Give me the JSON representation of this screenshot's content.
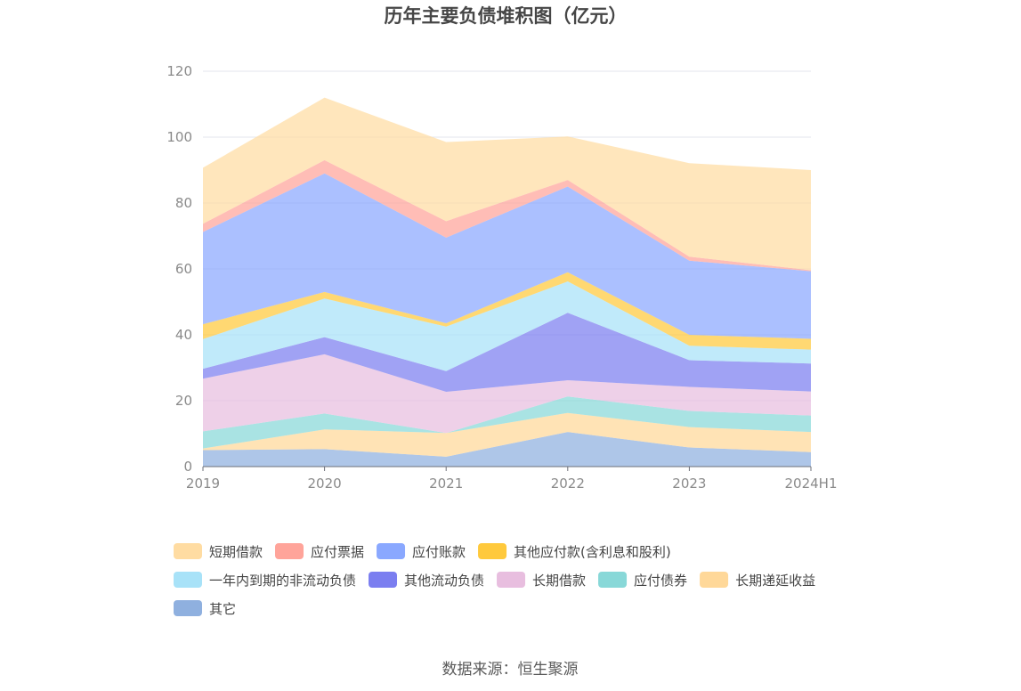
{
  "chart_data": {
    "type": "area",
    "stacked": true,
    "title": "历年主要负债堆积图（亿元）",
    "xlabel": "",
    "ylabel": "",
    "x": [
      "2019",
      "2020",
      "2021",
      "2022",
      "2023",
      "2024H1"
    ],
    "ylim": [
      0,
      120
    ],
    "yticks": [
      0,
      20,
      40,
      60,
      80,
      100,
      120
    ],
    "grid": true,
    "legend_position": "bottom",
    "series": [
      {
        "name": "其它",
        "color": "#8fb0df",
        "values": [
          5.0,
          5.3,
          3.0,
          10.5,
          5.8,
          4.4
        ]
      },
      {
        "name": "长期递延收益",
        "color": "#ffd899",
        "values": [
          0.5,
          6.0,
          7.2,
          5.8,
          6.2,
          6.1
        ]
      },
      {
        "name": "应付债券",
        "color": "#88d8d8",
        "values": [
          5.2,
          4.8,
          0.0,
          5.0,
          4.9,
          5.0
        ]
      },
      {
        "name": "长期借款",
        "color": "#e8bedf",
        "values": [
          16.0,
          18.0,
          12.5,
          4.9,
          7.3,
          7.3
        ]
      },
      {
        "name": "其他流动负债",
        "color": "#7b7ef0",
        "values": [
          3.0,
          5.2,
          6.3,
          20.5,
          8.1,
          8.5
        ]
      },
      {
        "name": "一年内到期的非流动负债",
        "color": "#a8e2f8",
        "values": [
          9.0,
          11.7,
          13.5,
          9.5,
          4.4,
          4.2
        ]
      },
      {
        "name": "其他应付款(含利息和股利)",
        "color": "#ffc93c",
        "values": [
          4.5,
          2.0,
          1.0,
          2.8,
          3.3,
          3.3
        ]
      },
      {
        "name": "应付账款",
        "color": "#8aa8ff",
        "values": [
          28.0,
          36.0,
          26.0,
          26.0,
          22.5,
          20.5
        ]
      },
      {
        "name": "应付票据",
        "color": "#ffa49a",
        "values": [
          2.5,
          4.0,
          5.0,
          2.0,
          1.2,
          0.3
        ]
      },
      {
        "name": "短期借款",
        "color": "#ffdca2",
        "values": [
          17.0,
          19.0,
          24.0,
          13.2,
          28.4,
          30.4
        ]
      }
    ]
  },
  "legend_order": [
    "短期借款",
    "应付票据",
    "应付账款",
    "其他应付款(含利息和股利)",
    "一年内到期的非流动负债",
    "其他流动负债",
    "长期借款",
    "应付债券",
    "长期递延收益",
    "其它"
  ],
  "source_text": "数据来源：恒生聚源"
}
